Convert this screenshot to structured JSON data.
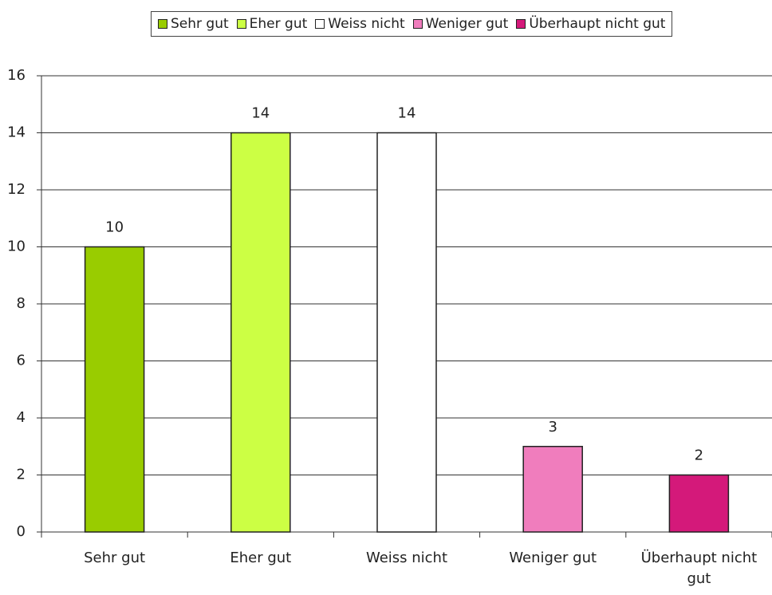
{
  "chart_data": {
    "type": "bar",
    "categories": [
      "Sehr gut",
      "Eher gut",
      "Weiss nicht",
      "Weniger gut",
      "Überhaupt nicht gut"
    ],
    "values": [
      10,
      14,
      14,
      3,
      2
    ],
    "colors": [
      "#99cc00",
      "#ccff44",
      "#ffffff",
      "#f07dbd",
      "#d4197a"
    ],
    "ylim": [
      0,
      16
    ],
    "yticks": [
      0,
      2,
      4,
      6,
      8,
      10,
      12,
      14,
      16
    ],
    "grid": true
  }
}
